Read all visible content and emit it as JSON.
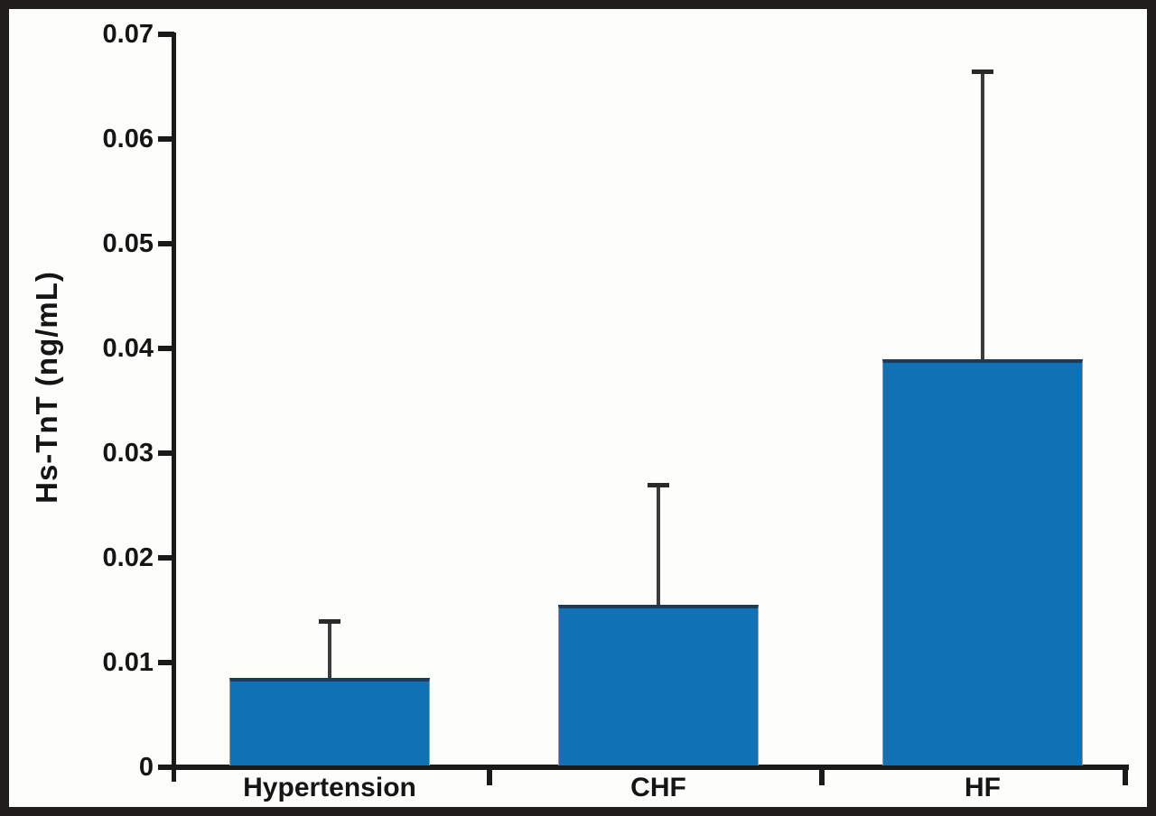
{
  "figure": {
    "frame_color": "#201d1d",
    "background": "#fdfdfb"
  },
  "chart_data": {
    "type": "bar",
    "title": "",
    "xlabel": "",
    "ylabel": "Hs-TnT (ng/mL)",
    "categories": [
      "Hypertension",
      "CHF",
      "HF"
    ],
    "values": [
      0.0085,
      0.0155,
      0.039
    ],
    "error_plus": [
      0.0055,
      0.0115,
      0.0275
    ],
    "error_tips": [
      0.014,
      0.027,
      0.0665
    ],
    "ylim": [
      0,
      0.07
    ],
    "ytick_values": [
      0,
      0.01,
      0.02,
      0.03,
      0.04,
      0.05,
      0.06,
      0.07
    ],
    "ytick_labels": [
      "0",
      "0.01",
      "0.02",
      "0.03",
      "0.04",
      "0.05",
      "0.06",
      "0.07"
    ],
    "grid": false,
    "legend": null,
    "bar_color": "#1171b5",
    "bar_edge_color": "#1b3b5e",
    "error_bar_color": "#3c3c3c",
    "axis_color": "#1a1a1a",
    "text_color": "#151515"
  }
}
